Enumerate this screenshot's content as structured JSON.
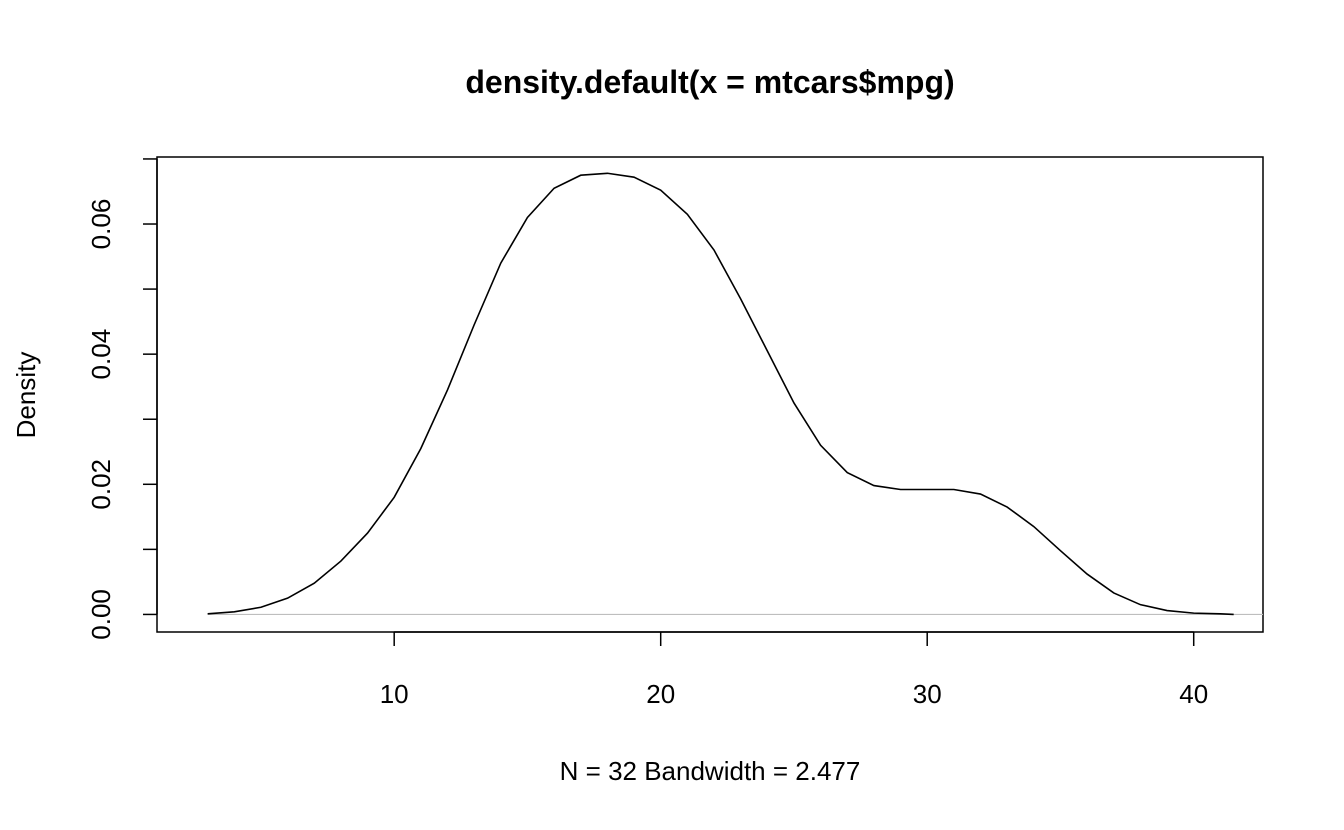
{
  "chart_data": {
    "type": "line",
    "title": "density.default(x = mtcars$mpg)",
    "xlabel": "N = 32   Bandwidth = 2.477",
    "ylabel": "Density",
    "xlim": [
      1.1,
      42.6
    ],
    "ylim": [
      -0.0027,
      0.0703
    ],
    "x_ticks": [
      10,
      20,
      30,
      40
    ],
    "x_tick_labels": [
      "10",
      "20",
      "30",
      "40"
    ],
    "y_ticks": [
      0.0,
      0.01,
      0.02,
      0.03,
      0.04,
      0.05,
      0.06,
      0.07
    ],
    "y_tick_labels": [
      "0.00",
      "",
      "0.02",
      "",
      "0.04",
      "",
      "0.06",
      ""
    ],
    "baseline": 0,
    "grid": false,
    "series": [
      {
        "x": [
          3.0,
          4.0,
          5.0,
          6.0,
          7.0,
          8.0,
          9.0,
          10.0,
          11.0,
          12.0,
          13.0,
          14.0,
          15.0,
          16.0,
          17.0,
          18.0,
          19.0,
          20.0,
          21.0,
          22.0,
          23.0,
          24.0,
          25.0,
          26.0,
          27.0,
          28.0,
          29.0,
          30.0,
          31.0,
          32.0,
          33.0,
          34.0,
          35.0,
          36.0,
          37.0,
          38.0,
          39.0,
          40.0,
          41.0,
          41.5
        ],
        "y": [
          0.0001,
          0.0004,
          0.0011,
          0.0025,
          0.0048,
          0.0082,
          0.0125,
          0.018,
          0.0255,
          0.0345,
          0.0445,
          0.054,
          0.061,
          0.0655,
          0.0675,
          0.0678,
          0.0672,
          0.0652,
          0.0615,
          0.056,
          0.0485,
          0.0405,
          0.0325,
          0.026,
          0.0218,
          0.0198,
          0.0192,
          0.0192,
          0.0192,
          0.0185,
          0.0165,
          0.0135,
          0.0098,
          0.0062,
          0.0033,
          0.0015,
          0.0006,
          0.0002,
          0.0001,
          0.0
        ]
      }
    ]
  }
}
